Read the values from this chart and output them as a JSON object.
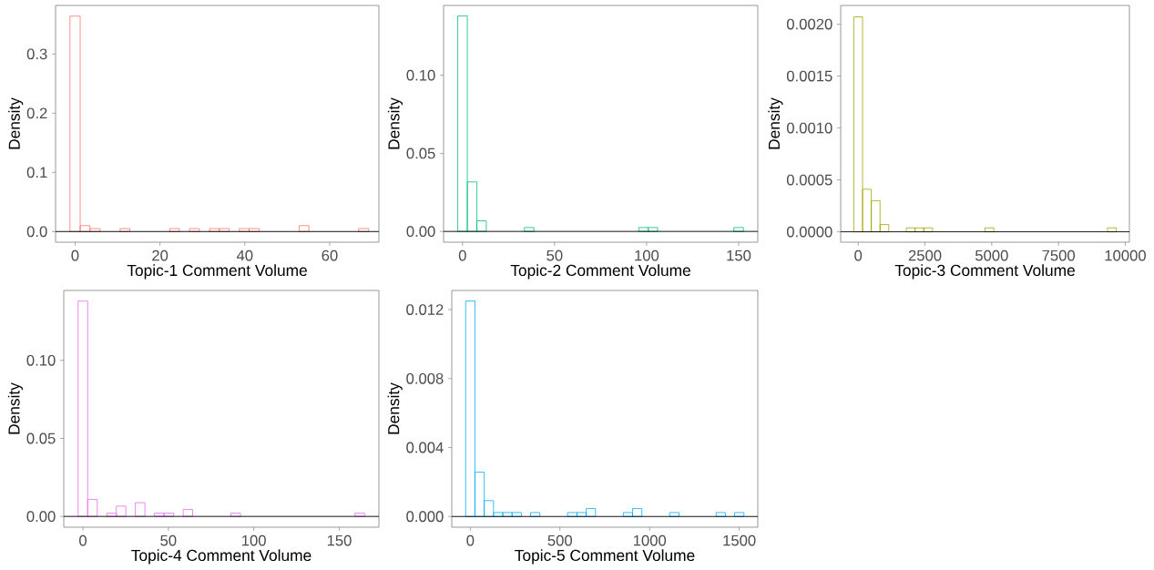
{
  "chart_data": [
    {
      "type": "histogram",
      "xlabel": "Topic-1 Comment Volume",
      "ylabel": "Density",
      "color": "#f8766d",
      "bins": [
        -1.2,
        1.2,
        3.5,
        5.9,
        8.2,
        10.6,
        12.9,
        15.2,
        17.6,
        19.9,
        22.3,
        24.6,
        27.0,
        29.3,
        31.7,
        34.0,
        36.3,
        38.7,
        41.0,
        43.4,
        45.7,
        48.1,
        50.4,
        52.8,
        55.1,
        57.4,
        59.8,
        62.1,
        64.5,
        66.8,
        69.2
      ],
      "values": [
        0.364,
        0.01,
        0.005,
        0,
        0,
        0.005,
        0,
        0,
        0,
        0,
        0.005,
        0,
        0.005,
        0,
        0.005,
        0.005,
        0,
        0.005,
        0.005,
        0,
        0,
        0,
        0,
        0.01,
        0,
        0,
        0,
        0,
        0,
        0.005
      ],
      "xlim": [
        -4.6,
        71.6
      ],
      "ylim": [
        -0.018,
        0.382
      ],
      "xticks": [
        0,
        20,
        40,
        60
      ],
      "yticks": [
        {
          "value": 0,
          "label": "0.0"
        },
        0.1,
        0.2,
        0.3
      ],
      "ref_lines": [
        {
          "axis": "y",
          "value": 0,
          "color": "#000000"
        }
      ]
    },
    {
      "type": "histogram",
      "xlabel": "Topic-2 Comment Volume",
      "ylabel": "Density",
      "color": "#00bf7d",
      "bins": [
        -2.6,
        2.6,
        7.8,
        12.9,
        18.1,
        23.3,
        28.4,
        33.6,
        38.8,
        44.0,
        49.1,
        54.3,
        59.5,
        64.7,
        69.8,
        75.0,
        80.2,
        85.3,
        90.5,
        95.7,
        100.9,
        106.0,
        111.2,
        116.4,
        121.6,
        126.7,
        131.9,
        137.1,
        142.2,
        147.4,
        152.6
      ],
      "values": [
        0.138,
        0.0317,
        0.0068,
        0,
        0,
        0,
        0,
        0.0025,
        0,
        0,
        0,
        0,
        0,
        0,
        0,
        0,
        0,
        0,
        0,
        0.0025,
        0.0025,
        0,
        0,
        0,
        0,
        0,
        0,
        0,
        0,
        0.0025
      ],
      "xlim": [
        -10.3,
        160.4
      ],
      "ylim": [
        -0.0069,
        0.1447
      ],
      "xticks": [
        0,
        50,
        100,
        150
      ],
      "yticks": [
        {
          "value": 0,
          "label": "0.00"
        },
        0.05,
        {
          "value": 0.1,
          "label": "0.10"
        }
      ],
      "ref_lines": [
        {
          "axis": "y",
          "value": 0,
          "color": "#000000"
        }
      ]
    },
    {
      "type": "histogram",
      "xlabel": "Topic-3 Comment Volume",
      "ylabel": "Density",
      "color": "#a3a500",
      "bins": [
        -164,
        164,
        491,
        819,
        1147,
        1474,
        1802,
        2129,
        2457,
        2785,
        3112,
        3440,
        3767,
        4095,
        4423,
        4750,
        5078,
        5405,
        5733,
        6061,
        6388,
        6716,
        7043,
        7371,
        7699,
        8026,
        8354,
        8681,
        9009,
        9337,
        9664
      ],
      "values": [
        0.00207,
        0.00041,
        0.0003,
        7e-05,
        0,
        0,
        3.8e-05,
        3.8e-05,
        3.8e-05,
        0,
        0,
        0,
        0,
        0,
        0,
        3.8e-05,
        0,
        0,
        0,
        0,
        0,
        0,
        0,
        0,
        0,
        0,
        0,
        0,
        0,
        3.8e-05
      ],
      "xlim": [
        -655,
        10155
      ],
      "ylim": [
        -0.0001,
        0.00218
      ],
      "xticks": [
        0,
        2500,
        5000,
        7500,
        10000
      ],
      "yticks": [
        {
          "value": 0,
          "label": "0.0000"
        },
        {
          "value": 0.0005,
          "label": "0.0005"
        },
        {
          "value": 0.001,
          "label": "0.0010"
        },
        {
          "value": 0.0015,
          "label": "0.0015"
        },
        {
          "value": 0.002,
          "label": "0.0020"
        }
      ],
      "ref_lines": [
        {
          "axis": "y",
          "value": 0,
          "color": "#000000"
        }
      ]
    },
    {
      "type": "histogram",
      "xlabel": "Topic-4 Comment Volume",
      "ylabel": "Density",
      "color": "#e76bf3",
      "bins": [
        -2.8,
        2.8,
        8.4,
        14.0,
        19.6,
        25.1,
        30.7,
        36.3,
        41.9,
        47.5,
        53.1,
        58.7,
        64.2,
        69.8,
        75.4,
        81.0,
        86.6,
        92.2,
        97.8,
        103.3,
        108.9,
        114.5,
        120.1,
        125.7,
        131.3,
        136.9,
        142.4,
        148.0,
        153.6,
        159.2,
        164.8
      ],
      "values": [
        0.138,
        0.0109,
        0,
        0.0021,
        0.0066,
        0,
        0.0088,
        0,
        0.0021,
        0.0021,
        0,
        0.0045,
        0,
        0,
        0,
        0,
        0.0021,
        0,
        0,
        0,
        0,
        0,
        0,
        0,
        0,
        0,
        0,
        0,
        0,
        0.0021
      ],
      "xlim": [
        -11.2,
        173.2
      ],
      "ylim": [
        -0.0069,
        0.1448
      ],
      "xticks": [
        0,
        50,
        100,
        150
      ],
      "yticks": [
        {
          "value": 0,
          "label": "0.00"
        },
        0.05,
        {
          "value": 0.1,
          "label": "0.10"
        }
      ],
      "ref_lines": [
        {
          "axis": "y",
          "value": 0,
          "color": "#000000"
        }
      ]
    },
    {
      "type": "histogram",
      "xlabel": "Topic-5 Comment Volume",
      "ylabel": "Density",
      "color": "#00b0f6",
      "bins": [
        -25.9,
        25.9,
        77.6,
        129.3,
        181.0,
        232.8,
        284.5,
        336.2,
        387.9,
        439.7,
        491.4,
        543.1,
        594.8,
        646.6,
        698.3,
        750.0,
        801.7,
        853.4,
        905.2,
        956.9,
        1008.6,
        1060.3,
        1112.1,
        1163.8,
        1215.5,
        1267.2,
        1319.0,
        1370.7,
        1422.4,
        1474.1,
        1525.9
      ],
      "values": [
        0.0125,
        0.00257,
        0.00092,
        0.00023,
        0.00023,
        0.00023,
        0,
        0.00023,
        0,
        0,
        0,
        0.00023,
        0.00023,
        0.00046,
        0,
        0,
        0,
        0.00023,
        0.00046,
        0,
        0,
        0,
        0.00023,
        0,
        0,
        0,
        0,
        0.00023,
        0,
        0.00023
      ],
      "xlim": [
        -103.4,
        1603.4
      ],
      "ylim": [
        -0.00062,
        0.01311
      ],
      "xticks": [
        0,
        500,
        1000,
        1500
      ],
      "yticks": [
        {
          "value": 0,
          "label": "0.000"
        },
        0.004,
        0.008,
        0.012
      ],
      "ref_lines": [
        {
          "axis": "y",
          "value": 0,
          "color": "#000000"
        }
      ]
    }
  ]
}
